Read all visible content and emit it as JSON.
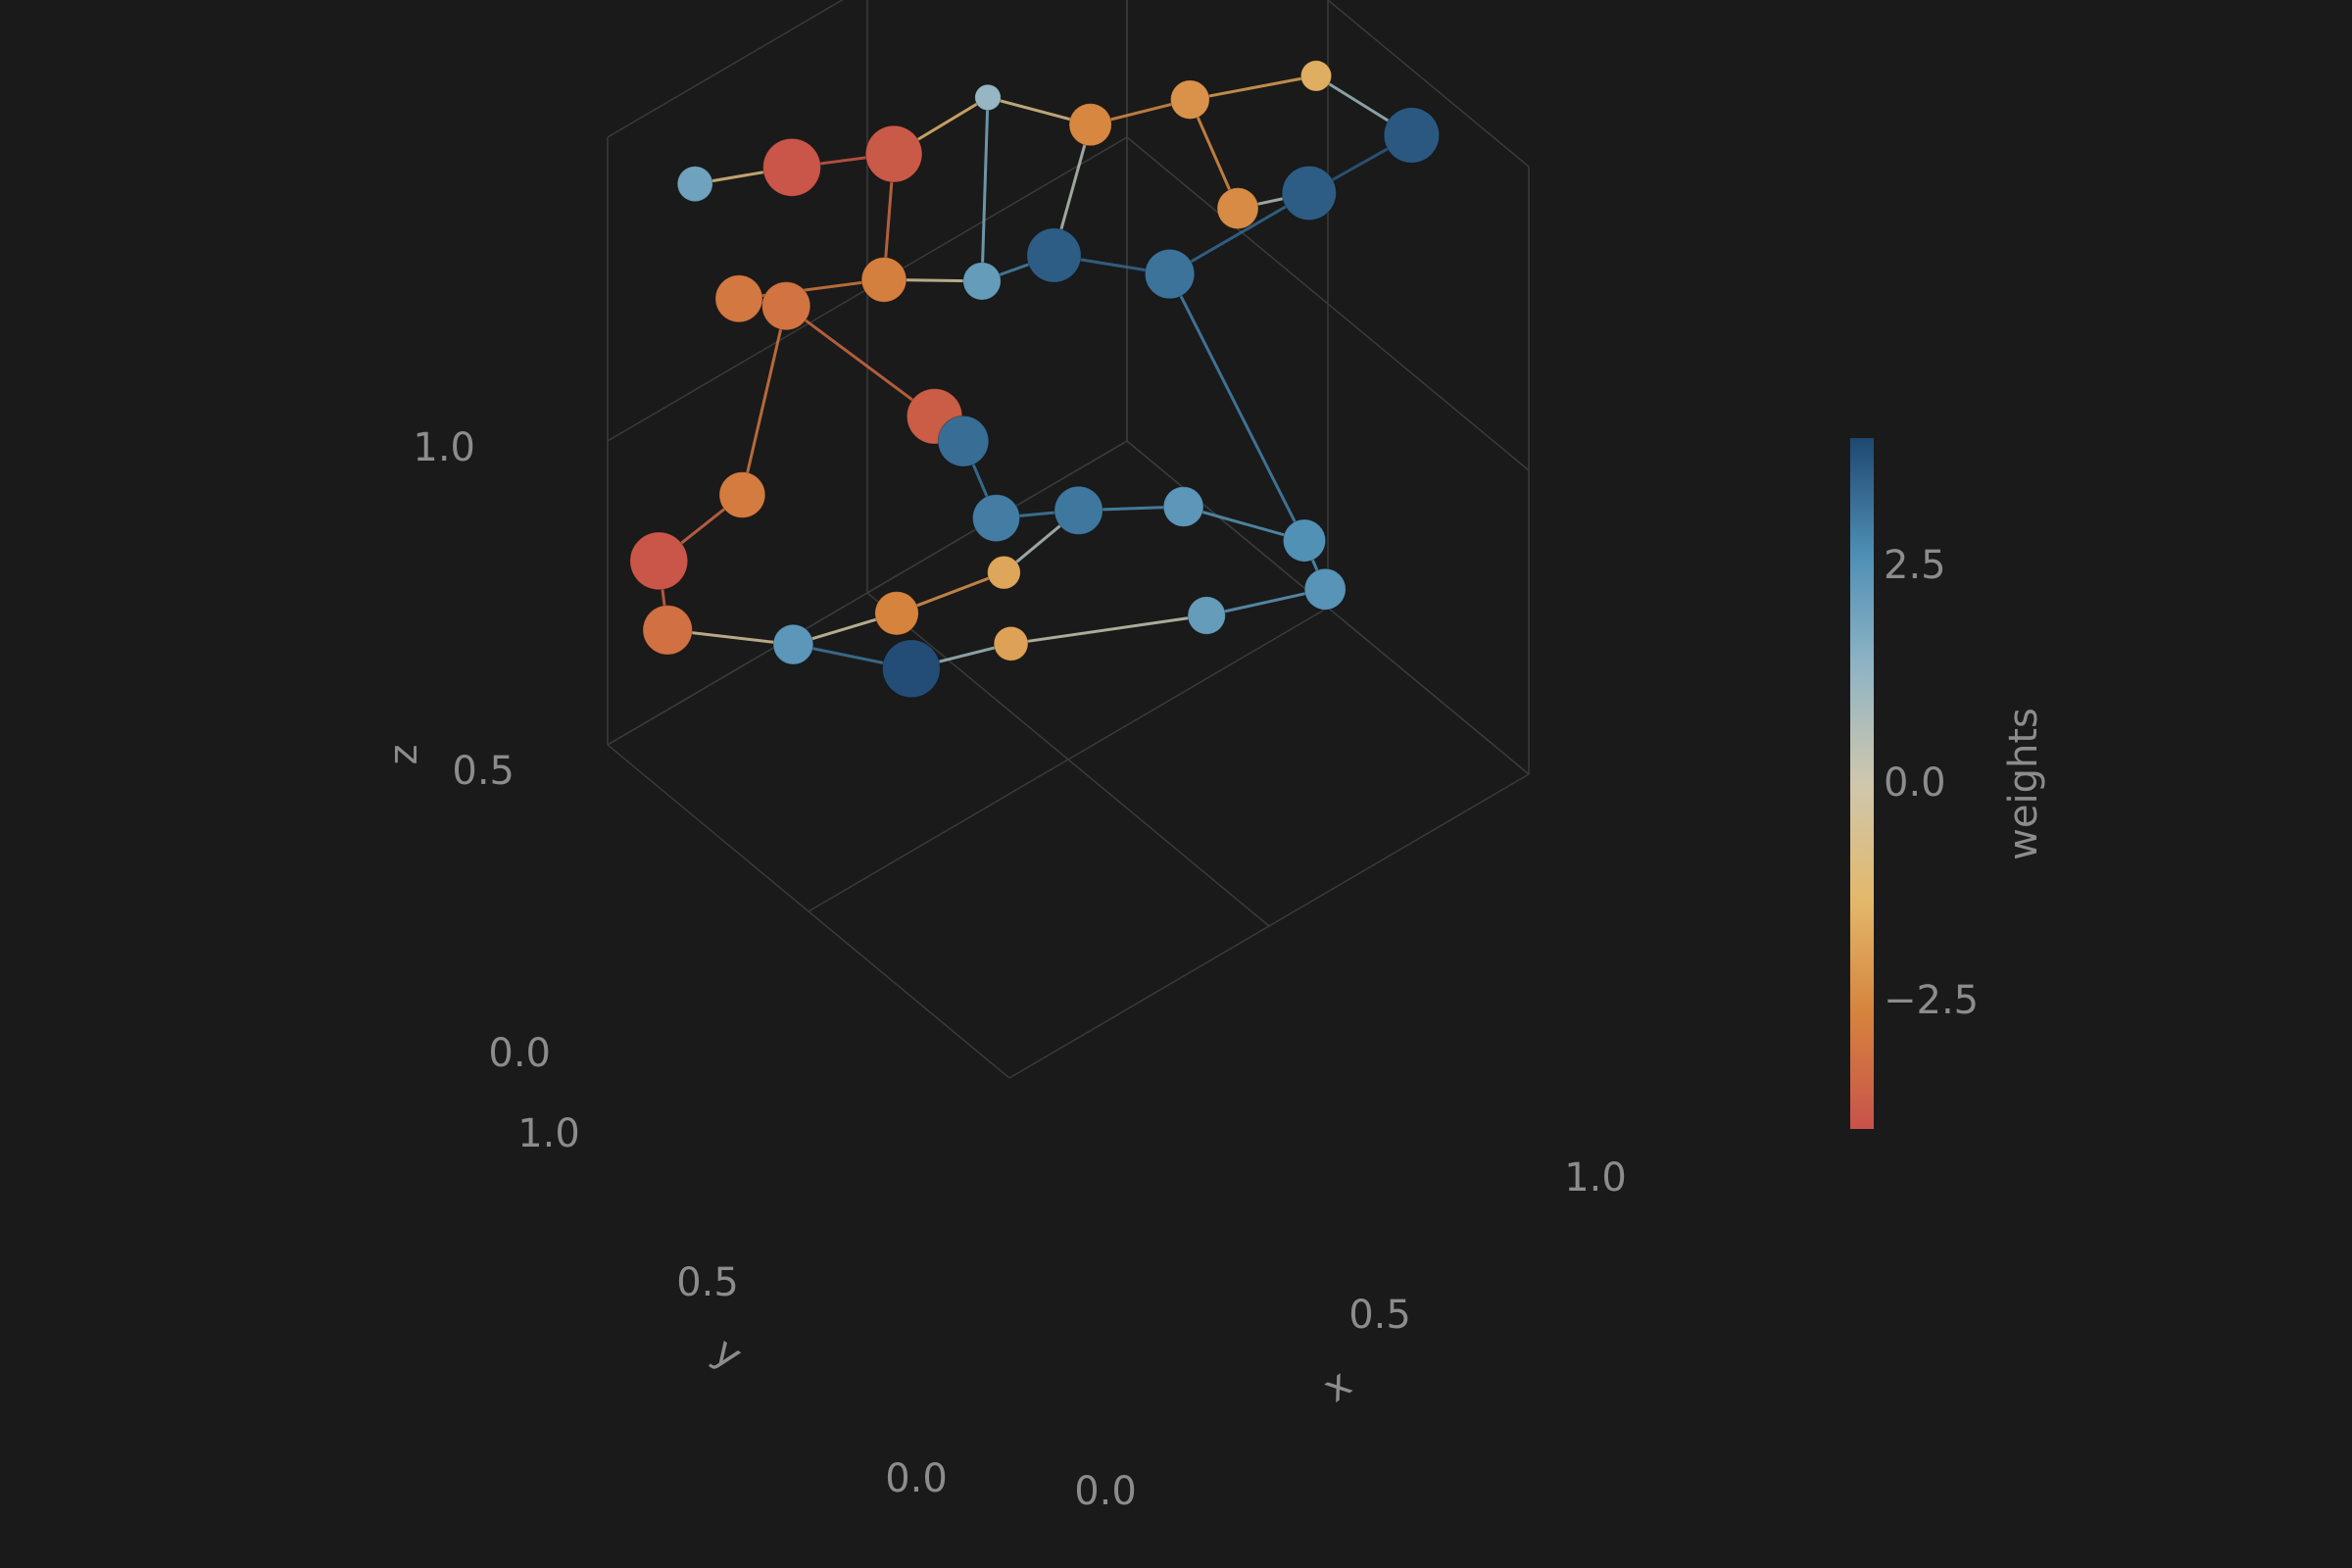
{
  "chart_data": {
    "type": "scatter",
    "subtype": "3d-network",
    "title": "",
    "axes": {
      "x": {
        "label": "x",
        "range": [
          0,
          1
        ],
        "ticks": [
          0.0,
          0.5,
          1.0
        ],
        "tick_labels": [
          "0.0",
          "0.5",
          "1.0"
        ]
      },
      "y": {
        "label": "y",
        "range": [
          0,
          1
        ],
        "ticks": [
          0.0,
          0.5,
          1.0
        ],
        "tick_labels": [
          "0.0",
          "0.5",
          "1.0"
        ]
      },
      "z": {
        "label": "z",
        "range": [
          0,
          1
        ],
        "ticks": [
          0.0,
          0.5,
          1.0
        ],
        "tick_labels": [
          "0.0",
          "0.5",
          "1.0"
        ]
      }
    },
    "grid": true,
    "colorbar": {
      "label": "weights",
      "range": [
        -4,
        4
      ],
      "ticks": [
        2.5,
        0.0,
        -2.5
      ],
      "tick_labels": [
        "2.5",
        "0.0",
        "−2.5"
      ],
      "placement": "right",
      "colors": [
        "#c8524a",
        "#d6843e",
        "#e3b86a",
        "#cfc7ad",
        "#8fb4c4",
        "#4f8fb5",
        "#1f4871"
      ]
    },
    "nodes": [
      {
        "x": 0.06,
        "y": 0.86,
        "z": 0.97,
        "w": 2.0
      },
      {
        "x": 0.2,
        "y": 0.8,
        "z": 0.96,
        "w": -3.9
      },
      {
        "x": 0.35,
        "y": 0.74,
        "z": 0.94,
        "w": -3.8
      },
      {
        "x": 0.5,
        "y": 0.7,
        "z": 0.98,
        "w": 1.2
      },
      {
        "x": 0.62,
        "y": 0.6,
        "z": 0.93,
        "w": -2.6
      },
      {
        "x": 0.75,
        "y": 0.52,
        "z": 0.95,
        "w": -2.3
      },
      {
        "x": 0.9,
        "y": 0.4,
        "z": 0.98,
        "w": -1.6
      },
      {
        "x": 0.96,
        "y": 0.24,
        "z": 0.94,
        "w": 3.7
      },
      {
        "x": 0.84,
        "y": 0.34,
        "z": 0.85,
        "w": 3.6
      },
      {
        "x": 0.78,
        "y": 0.44,
        "z": 0.8,
        "w": -2.5
      },
      {
        "x": 0.3,
        "y": 0.7,
        "z": 0.78,
        "w": -2.8
      },
      {
        "x": 0.16,
        "y": 0.88,
        "z": 0.72,
        "w": -3.0
      },
      {
        "x": 0.22,
        "y": 0.84,
        "z": 0.7,
        "w": -3.1
      },
      {
        "x": 0.55,
        "y": 0.6,
        "z": 0.75,
        "w": 3.6
      },
      {
        "x": 0.45,
        "y": 0.65,
        "z": 0.73,
        "w": 2.2
      },
      {
        "x": 0.68,
        "y": 0.48,
        "z": 0.72,
        "w": 3.2
      },
      {
        "x": 0.32,
        "y": 0.6,
        "z": 0.6,
        "w": -3.7
      },
      {
        "x": 0.36,
        "y": 0.58,
        "z": 0.55,
        "w": 3.3
      },
      {
        "x": 0.12,
        "y": 0.82,
        "z": 0.45,
        "w": -2.9
      },
      {
        "x": 0.06,
        "y": 0.95,
        "z": 0.3,
        "w": -3.9
      },
      {
        "x": 0.1,
        "y": 0.98,
        "z": 0.15,
        "w": -3.2
      },
      {
        "x": 0.4,
        "y": 0.55,
        "z": 0.42,
        "w": 3.0
      },
      {
        "x": 0.52,
        "y": 0.5,
        "z": 0.4,
        "w": 3.1
      },
      {
        "x": 0.66,
        "y": 0.42,
        "z": 0.38,
        "w": 2.4
      },
      {
        "x": 0.8,
        "y": 0.3,
        "z": 0.32,
        "w": 2.6
      },
      {
        "x": 0.34,
        "y": 0.72,
        "z": 0.2,
        "w": -2.7
      },
      {
        "x": 0.5,
        "y": 0.66,
        "z": 0.22,
        "w": -1.8
      },
      {
        "x": 0.28,
        "y": 0.9,
        "z": 0.08,
        "w": 2.4
      },
      {
        "x": 0.43,
        "y": 0.8,
        "z": 0.02,
        "w": 3.9
      },
      {
        "x": 0.56,
        "y": 0.72,
        "z": 0.04,
        "w": -1.9
      },
      {
        "x": 0.72,
        "y": 0.44,
        "z": 0.16,
        "w": 2.2
      },
      {
        "x": 0.84,
        "y": 0.3,
        "z": 0.22,
        "w": 2.5
      }
    ],
    "edges": [
      [
        0,
        1
      ],
      [
        1,
        2
      ],
      [
        2,
        3
      ],
      [
        3,
        4
      ],
      [
        4,
        5
      ],
      [
        5,
        6
      ],
      [
        6,
        7
      ],
      [
        7,
        8
      ],
      [
        8,
        9
      ],
      [
        9,
        5
      ],
      [
        2,
        10
      ],
      [
        10,
        11
      ],
      [
        11,
        12
      ],
      [
        12,
        16
      ],
      [
        13,
        14
      ],
      [
        14,
        10
      ],
      [
        13,
        15
      ],
      [
        15,
        8
      ],
      [
        16,
        17
      ],
      [
        17,
        21
      ],
      [
        18,
        12
      ],
      [
        18,
        19
      ],
      [
        19,
        20
      ],
      [
        21,
        22
      ],
      [
        22,
        23
      ],
      [
        23,
        24
      ],
      [
        24,
        15
      ],
      [
        25,
        26
      ],
      [
        26,
        22
      ],
      [
        27,
        28
      ],
      [
        28,
        29
      ],
      [
        29,
        30
      ],
      [
        30,
        31
      ],
      [
        31,
        24
      ],
      [
        25,
        27
      ],
      [
        20,
        27
      ],
      [
        3,
        14
      ],
      [
        13,
        4
      ]
    ]
  }
}
